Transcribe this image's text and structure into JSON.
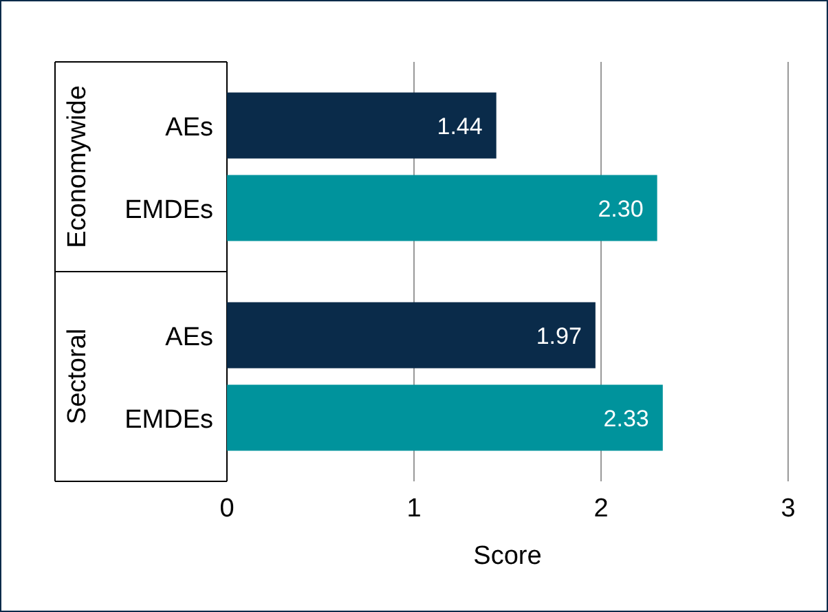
{
  "chart_data": {
    "type": "bar",
    "orientation": "horizontal",
    "categories": [
      "AEs",
      "EMDEs",
      "AEs",
      "EMDEs"
    ],
    "values": [
      1.44,
      2.3,
      1.97,
      2.33
    ],
    "colors": [
      "#0a2b4a",
      "#00939c",
      "#0a2b4a",
      "#00939c"
    ],
    "value_labels": [
      "1.44",
      "2.30",
      "1.97",
      "2.33"
    ],
    "annotations": [
      "Economywide",
      "Sectoral"
    ],
    "xlabel": "Score",
    "xlim": [
      0,
      3
    ],
    "xticks": [
      0,
      1,
      2,
      3
    ],
    "grid": "x"
  }
}
